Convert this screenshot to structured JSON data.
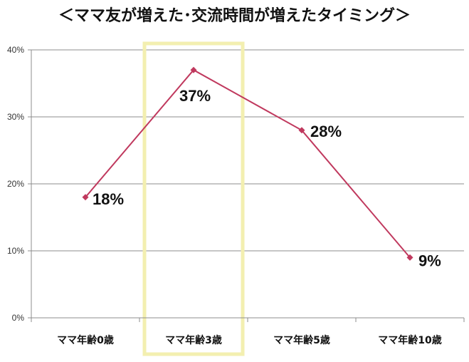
{
  "chart_data": {
    "type": "line",
    "title": "＜ママ友が増えた･交流時間が増えたタイミング＞",
    "categories": [
      "ママ年齢0歳",
      "ママ年齢3歳",
      "ママ年齢5歳",
      "ママ年齢10歳"
    ],
    "series": [
      {
        "values": [
          18,
          37,
          28,
          9
        ],
        "color": "#c0395e"
      }
    ],
    "data_labels": [
      "18%",
      "37%",
      "28%",
      "9%"
    ],
    "y_ticks": [
      "0%",
      "10%",
      "20%",
      "30%",
      "40%"
    ],
    "ylim": [
      0,
      40
    ],
    "grid": true,
    "highlight_category": "ママ年齢3歳",
    "highlight_color": "#f3efb0",
    "line_color": "#c0395e",
    "xlabel": "",
    "ylabel": ""
  }
}
